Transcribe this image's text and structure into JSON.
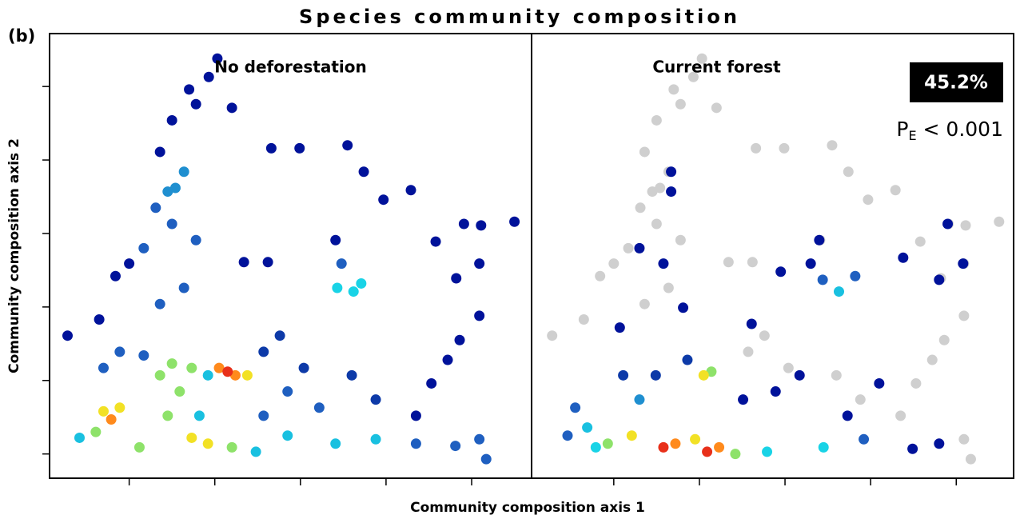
{
  "title": "Species community composition",
  "panel_label": "(b)",
  "xlabel": "Community composition  axis 1",
  "ylabel": "Community composition  axis 2",
  "chart_data": [
    {
      "type": "scatter",
      "subtitle": "No deforestation",
      "xlim": [
        0.07,
        5.7
      ],
      "ylim": [
        0.67,
        6.72
      ],
      "xticks": [
        1,
        2,
        3,
        4,
        5
      ],
      "yticks": [
        1,
        2,
        3,
        4,
        5,
        6
      ],
      "x": [
        2.03,
        1.93,
        1.7,
        1.5,
        2.2,
        1.78,
        2.66,
        2.99,
        3.55,
        3.74,
        3.97,
        4.29,
        4.91,
        5.11,
        5.5,
        4.58,
        5.09,
        4.82,
        3.41,
        2.62,
        2.34,
        0.28,
        0.65,
        0.84,
        1.0,
        5.09,
        4.86,
        4.72,
        4.53,
        4.35,
        5.09,
        5.17,
        2.76,
        2.57,
        3.04,
        3.6,
        3.88,
        1.36,
        1.64,
        1.17,
        1.31,
        1.5,
        1.78,
        1.54,
        1.64,
        1.45,
        1.36,
        3.48,
        0.89,
        0.7,
        1.17,
        2.57,
        3.22,
        2.85,
        4.35,
        4.81,
        3.43,
        3.62,
        3.71,
        1.92,
        1.82,
        2.48,
        2.85,
        3.41,
        3.88,
        0.42,
        0.61,
        1.12,
        1.36,
        1.5,
        1.73,
        1.59,
        1.45,
        2.2,
        2.38,
        0.7,
        0.89,
        1.73,
        1.92,
        2.05,
        2.24,
        0.79,
        2.15
      ],
      "y": [
        6.38,
        6.13,
        5.96,
        5.54,
        5.71,
        5.76,
        5.16,
        5.16,
        5.2,
        4.84,
        4.46,
        4.59,
        4.13,
        4.11,
        4.16,
        3.89,
        3.59,
        3.39,
        3.91,
        3.61,
        3.61,
        2.61,
        2.83,
        3.42,
        3.59,
        2.88,
        2.55,
        2.28,
        1.96,
        1.52,
        1.2,
        0.93,
        2.61,
        2.39,
        2.17,
        2.07,
        1.74,
        3.04,
        3.26,
        3.8,
        4.35,
        4.13,
        3.91,
        4.62,
        4.84,
        4.57,
        5.11,
        3.59,
        2.39,
        2.17,
        2.34,
        1.52,
        1.63,
        1.85,
        1.14,
        1.11,
        3.26,
        3.21,
        3.32,
        2.07,
        1.52,
        1.03,
        1.25,
        1.14,
        1.2,
        1.22,
        1.3,
        1.09,
        2.07,
        2.23,
        2.17,
        1.85,
        1.52,
        1.09,
        2.07,
        1.58,
        1.63,
        1.22,
        1.14,
        2.17,
        2.07,
        1.47,
        2.12
      ],
      "colors": [
        "#00129a",
        "#00129a",
        "#00129a",
        "#00129a",
        "#00129a",
        "#00129a",
        "#00129a",
        "#00129a",
        "#00129a",
        "#00129a",
        "#00129a",
        "#00129a",
        "#00129a",
        "#00129a",
        "#00129a",
        "#00129a",
        "#00129a",
        "#00129a",
        "#00129a",
        "#00129a",
        "#00129a",
        "#00129a",
        "#00129a",
        "#00129a",
        "#00129a",
        "#00129a",
        "#00129a",
        "#00129a",
        "#00129a",
        "#00129a",
        "#1f5fc0",
        "#1f5fc0",
        "#0d3aa8",
        "#0d3aa8",
        "#0d3aa8",
        "#0d3aa8",
        "#0d3aa8",
        "#1f5fc0",
        "#1f5fc0",
        "#1f5fc0",
        "#1f5fc0",
        "#1f5fc0",
        "#1f5fc0",
        "#1f8fd0",
        "#1f8fd0",
        "#1f8fd0",
        "#00129a",
        "#1f5fc0",
        "#1f5fc0",
        "#1f5fc0",
        "#1f5fc0",
        "#1f5fc0",
        "#1f5fc0",
        "#1f5fc0",
        "#1f5fc0",
        "#1f5fc0",
        "#19d3e6",
        "#19d3e6",
        "#19d3e6",
        "#19c0e0",
        "#19c0e0",
        "#19c0e0",
        "#19c0e0",
        "#19c0e0",
        "#19c0e0",
        "#19c0e0",
        "#8ee26a",
        "#8ee26a",
        "#8ee26a",
        "#8ee26a",
        "#8ee26a",
        "#8ee26a",
        "#8ee26a",
        "#8ee26a",
        "#f2e125",
        "#f2e125",
        "#f2e125",
        "#f2e125",
        "#f2e125",
        "#ff8a1c",
        "#ff8a1c",
        "#ff8a1c",
        "#e8301a"
      ]
    },
    {
      "type": "scatter",
      "subtitle": "Current forest",
      "box_label": "45.2%",
      "p_symbol": "P",
      "p_subscript": "E",
      "p_text": " < 0.001",
      "xlim": [
        0.04,
        5.67
      ],
      "ylim": [
        0.67,
        6.72
      ],
      "xticks": [
        1,
        2,
        3,
        4,
        5
      ],
      "x": [
        2.03,
        1.93,
        1.7,
        1.5,
        2.2,
        1.78,
        2.66,
        2.99,
        3.55,
        3.74,
        3.97,
        4.29,
        4.91,
        5.11,
        5.5,
        4.58,
        5.09,
        4.82,
        3.41,
        2.62,
        2.34,
        0.28,
        0.65,
        0.84,
        1.0,
        5.09,
        4.86,
        4.72,
        4.53,
        4.35,
        5.09,
        5.17,
        2.76,
        2.57,
        3.04,
        3.6,
        3.88,
        1.36,
        1.64,
        1.17,
        1.31,
        1.5,
        1.78,
        1.54,
        1.64,
        1.45,
        1.36,
        4.9,
        5.08,
        4.8,
        4.38,
        3.4,
        3.3,
        2.95,
        1.67,
        1.67,
        1.3,
        1.58,
        1.81,
        1.07,
        2.61,
        4.1,
        3.73,
        4.49,
        4.8,
        2.51,
        2.89,
        3.17,
        1.86,
        1.49,
        1.11,
        0.55,
        0.46,
        3.92,
        3.44,
        3.82,
        1.3,
        0.69,
        0.79,
        3.63,
        2.79,
        3.45,
        0.93,
        2.42,
        2.14,
        1.21,
        1.95,
        2.05,
        1.72,
        2.23,
        1.58,
        2.09
      ],
      "y": [
        6.38,
        6.13,
        5.96,
        5.54,
        5.71,
        5.76,
        5.16,
        5.16,
        5.2,
        4.84,
        4.46,
        4.59,
        4.13,
        4.11,
        4.16,
        3.89,
        3.59,
        3.39,
        3.91,
        3.61,
        3.61,
        2.61,
        2.83,
        3.42,
        3.59,
        2.88,
        2.55,
        2.28,
        1.96,
        1.52,
        1.2,
        0.93,
        2.61,
        2.39,
        2.17,
        2.07,
        1.74,
        3.04,
        3.26,
        3.8,
        4.35,
        4.13,
        3.91,
        4.62,
        4.84,
        4.57,
        5.11,
        4.13,
        3.59,
        3.37,
        3.67,
        3.91,
        3.59,
        3.48,
        4.84,
        4.57,
        3.8,
        3.59,
        2.99,
        2.72,
        2.77,
        1.96,
        1.52,
        1.07,
        1.14,
        1.74,
        1.85,
        2.07,
        2.28,
        2.07,
        2.07,
        1.63,
        1.25,
        1.2,
        3.37,
        3.42,
        1.74,
        1.36,
        1.09,
        3.21,
        1.03,
        1.09,
        1.14,
        1.0,
        2.12,
        1.25,
        1.2,
        2.07,
        1.14,
        1.09,
        1.09,
        1.03
      ],
      "colors": [
        "#cfcfcf",
        "#cfcfcf",
        "#cfcfcf",
        "#cfcfcf",
        "#cfcfcf",
        "#cfcfcf",
        "#cfcfcf",
        "#cfcfcf",
        "#cfcfcf",
        "#cfcfcf",
        "#cfcfcf",
        "#cfcfcf",
        "#cfcfcf",
        "#cfcfcf",
        "#cfcfcf",
        "#cfcfcf",
        "#cfcfcf",
        "#cfcfcf",
        "#cfcfcf",
        "#cfcfcf",
        "#cfcfcf",
        "#cfcfcf",
        "#cfcfcf",
        "#cfcfcf",
        "#cfcfcf",
        "#cfcfcf",
        "#cfcfcf",
        "#cfcfcf",
        "#cfcfcf",
        "#cfcfcf",
        "#cfcfcf",
        "#cfcfcf",
        "#cfcfcf",
        "#cfcfcf",
        "#cfcfcf",
        "#cfcfcf",
        "#cfcfcf",
        "#cfcfcf",
        "#cfcfcf",
        "#cfcfcf",
        "#cfcfcf",
        "#cfcfcf",
        "#cfcfcf",
        "#cfcfcf",
        "#cfcfcf",
        "#cfcfcf",
        "#cfcfcf",
        "#00129a",
        "#00129a",
        "#00129a",
        "#00129a",
        "#00129a",
        "#00129a",
        "#00129a",
        "#00129a",
        "#00129a",
        "#00129a",
        "#00129a",
        "#00129a",
        "#00129a",
        "#00129a",
        "#00129a",
        "#00129a",
        "#00129a",
        "#00129a",
        "#00129a",
        "#00129a",
        "#00129a",
        "#0d3aa8",
        "#0d3aa8",
        "#0d3aa8",
        "#1f5fc0",
        "#1f5fc0",
        "#1f5fc0",
        "#1f5fc0",
        "#1f5fc0",
        "#1f8fd0",
        "#19c0e0",
        "#19d3e6",
        "#19c0e0",
        "#19d3e6",
        "#19d3e6",
        "#8ee26a",
        "#8ee26a",
        "#8ee26a",
        "#f2e125",
        "#f2e125",
        "#f2e125",
        "#ff8a1c",
        "#ff8a1c",
        "#e8301a",
        "#e8301a"
      ]
    }
  ]
}
